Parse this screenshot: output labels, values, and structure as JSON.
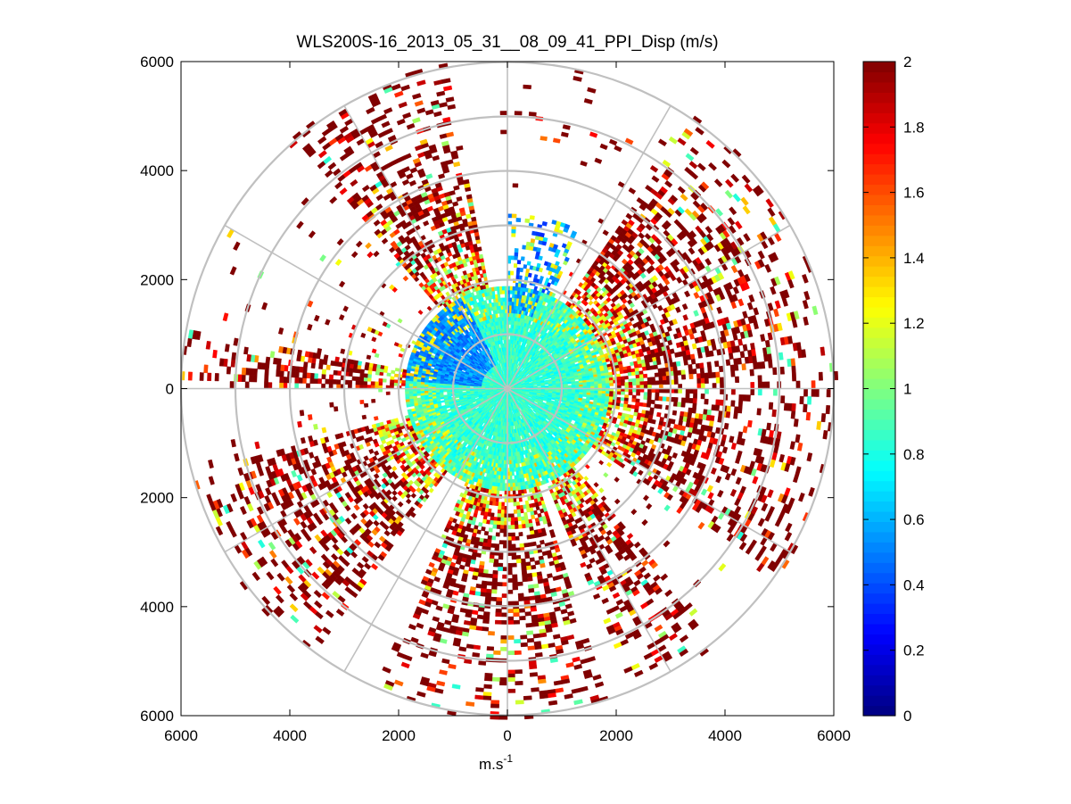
{
  "chart_data": {
    "type": "heatmap",
    "subtype": "polar-ppi",
    "title": "WLS200S-16_2013_05_31__08_09_41_PPI_Disp (m/s)",
    "xlabel": "m.s",
    "xlabel_superscript": "-1",
    "ylabel": "",
    "xlim": [
      -6000,
      6000
    ],
    "ylim": [
      -6000,
      6000
    ],
    "x_tick_labels": [
      "6000",
      "4000",
      "2000",
      "0",
      "2000",
      "4000",
      "6000"
    ],
    "x_tick_values": [
      -6000,
      -4000,
      -2000,
      0,
      2000,
      4000,
      6000
    ],
    "y_tick_labels": [
      "6000",
      "4000",
      "2000",
      "0",
      "2000",
      "4000",
      "6000"
    ],
    "y_tick_values": [
      6000,
      4000,
      2000,
      0,
      -2000,
      -4000,
      -6000
    ],
    "polar_ring_radii": [
      1000,
      2000,
      3000,
      4000,
      5000,
      6000
    ],
    "polar_spoke_angles_deg": [
      0,
      30,
      60,
      90,
      120,
      150,
      180,
      210,
      240,
      270,
      300,
      330
    ],
    "colorbar": {
      "colormap": "jet",
      "min": 0,
      "max": 2,
      "tick_labels": [
        "0",
        "0.2",
        "0.4",
        "0.6",
        "0.8",
        "1",
        "1.2",
        "1.4",
        "1.6",
        "1.8",
        "2"
      ],
      "tick_values": [
        0,
        0.2,
        0.4,
        0.6,
        0.8,
        1.0,
        1.2,
        1.4,
        1.6,
        1.8,
        2.0
      ]
    },
    "description_regions": [
      {
        "range_m": [
          0,
          2000
        ],
        "az_deg": [
          0,
          360
        ],
        "typical_value": 0.85
      },
      {
        "range_m": [
          1500,
          3000
        ],
        "az_deg": [
          280,
          330
        ],
        "typical_value": 0.4
      },
      {
        "range_m": [
          2500,
          4500
        ],
        "az_deg": [
          330,
          345
        ],
        "typical_value": 2.0
      },
      {
        "range_m": [
          2500,
          5000
        ],
        "az_deg": [
          40,
          120
        ],
        "typical_value": 1.9
      },
      {
        "range_m": [
          2500,
          5800
        ],
        "az_deg": [
          150,
          250
        ],
        "typical_value": 1.8
      }
    ]
  }
}
